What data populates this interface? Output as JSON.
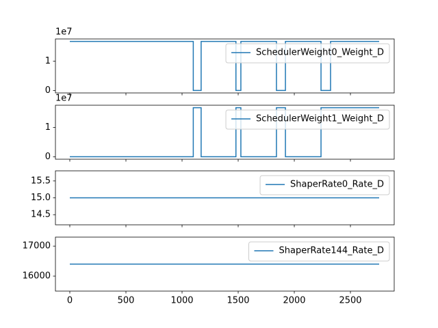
{
  "chart_data": [
    {
      "type": "line",
      "offset_text": "1e7",
      "x": [
        0,
        1100,
        1100,
        1170,
        1170,
        1480,
        1480,
        1524,
        1524,
        1841,
        1841,
        1921,
        1921,
        2238,
        2238,
        2323,
        2323,
        2756
      ],
      "series": [
        {
          "name": "SchedulerWeight0_Weight_D",
          "color": "#1f77b4",
          "values": [
            16777216,
            16777216,
            0,
            0,
            16777216,
            16777216,
            0,
            0,
            16777216,
            16777216,
            0,
            0,
            16777216,
            16777216,
            0,
            0,
            16777216,
            16777216
          ]
        }
      ],
      "xlim": [
        -128,
        2890
      ],
      "xticks": [
        0,
        500,
        1000,
        1500,
        2000,
        2500
      ],
      "ylim": [
        -840000,
        17620000
      ],
      "yticks": [
        0,
        {
          "value": 10000000,
          "label": "1"
        }
      ],
      "legend": "upper right"
    },
    {
      "type": "line",
      "offset_text": "1e7",
      "x": [
        0,
        1100,
        1100,
        1170,
        1170,
        1480,
        1480,
        1524,
        1524,
        1841,
        1841,
        1921,
        1921,
        2238,
        2238,
        2756
      ],
      "series": [
        {
          "name": "SchedulerWeight1_Weight_D",
          "color": "#1f77b4",
          "values": [
            0,
            0,
            16777216,
            16777216,
            0,
            0,
            16777216,
            16777216,
            0,
            0,
            16777216,
            16777216,
            0,
            0,
            16777216,
            16777216
          ]
        }
      ],
      "xlim": [
        -128,
        2890
      ],
      "xticks": [
        0,
        500,
        1000,
        1500,
        2000,
        2500
      ],
      "ylim": [
        -840000,
        17620000
      ],
      "yticks": [
        0,
        {
          "value": 10000000,
          "label": "1"
        }
      ],
      "legend": "upper right"
    },
    {
      "type": "line",
      "x": [
        0,
        2756
      ],
      "series": [
        {
          "name": "ShaperRate0_Rate_D",
          "color": "#1f77b4",
          "values": [
            15,
            15
          ]
        }
      ],
      "xlim": [
        -128,
        2890
      ],
      "xticks": [
        0,
        500,
        1000,
        1500,
        2000,
        2500
      ],
      "ylim": [
        14.2,
        15.8
      ],
      "yticks": [
        14.5,
        {
          "value": 15,
          "label": "15.0"
        },
        15.5
      ],
      "legend": "upper right"
    },
    {
      "type": "line",
      "x": [
        0,
        2756
      ],
      "series": [
        {
          "name": "ShaperRate144_Rate_D",
          "color": "#1f77b4",
          "values": [
            16400,
            16400
          ]
        }
      ],
      "xlim": [
        -128,
        2890
      ],
      "xticks": [
        0,
        500,
        1000,
        1500,
        2000,
        2500
      ],
      "ylim": [
        15500,
        17300
      ],
      "yticks": [
        16000,
        17000
      ],
      "legend": "upper right"
    }
  ]
}
